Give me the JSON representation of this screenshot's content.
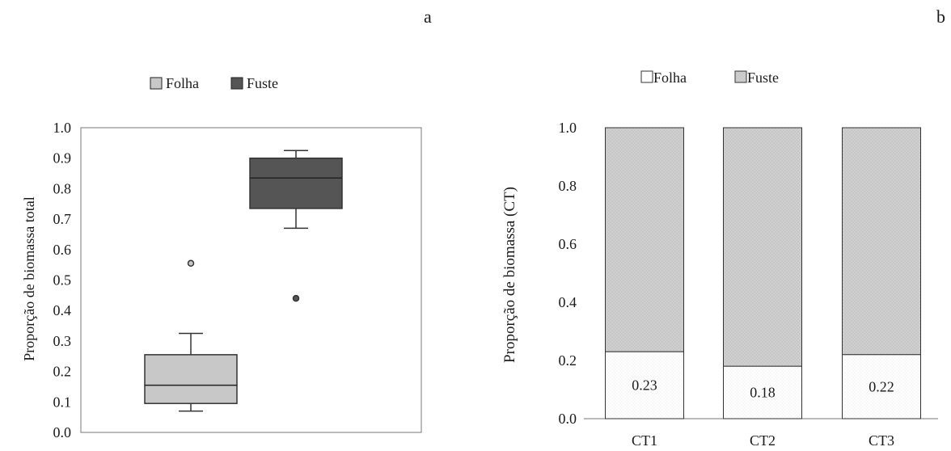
{
  "panel_labels": {
    "a": "a",
    "b": "b"
  },
  "colors": {
    "folha_box": "#c8c8c8",
    "fuste_box": "#555555",
    "folha_bar": "#ffffff",
    "fuste_bar": "#cccccc",
    "axis": "#777777",
    "outline": "#333333"
  },
  "chart_data": [
    {
      "type": "box",
      "panel": "a",
      "ylabel": "Proporção de biomassa total",
      "ylim": [
        0,
        1
      ],
      "yticks": [
        "0.0",
        "0.1",
        "0.2",
        "0.3",
        "0.4",
        "0.5",
        "0.6",
        "0.7",
        "0.8",
        "0.9",
        "1.0"
      ],
      "legend": [
        "Folha",
        "Fuste"
      ],
      "legend_position": "top",
      "grid": false,
      "boxes": [
        {
          "name": "Folha",
          "whisker_low": 0.07,
          "q1": 0.095,
          "median": 0.155,
          "q3": 0.255,
          "whisker_high": 0.325,
          "outliers": [
            0.555
          ]
        },
        {
          "name": "Fuste",
          "whisker_low": 0.67,
          "q1": 0.735,
          "median": 0.835,
          "q3": 0.9,
          "whisker_high": 0.925,
          "outliers": [
            0.44
          ]
        }
      ]
    },
    {
      "type": "bar",
      "stacked": true,
      "panel": "b",
      "ylabel": "Proporção de biomassa (CT)",
      "ylim": [
        0,
        1
      ],
      "yticks": [
        "0.0",
        "0.2",
        "0.4",
        "0.6",
        "0.8",
        "1.0"
      ],
      "categories": [
        "CT1",
        "CT2",
        "CT3"
      ],
      "legend_position": "top",
      "grid": false,
      "series": [
        {
          "name": "Folha",
          "values": [
            0.23,
            0.18,
            0.22
          ],
          "labels": [
            "0.23",
            "0.18",
            "0.22"
          ]
        },
        {
          "name": "Fuste",
          "values": [
            0.77,
            0.82,
            0.78
          ]
        }
      ]
    }
  ]
}
